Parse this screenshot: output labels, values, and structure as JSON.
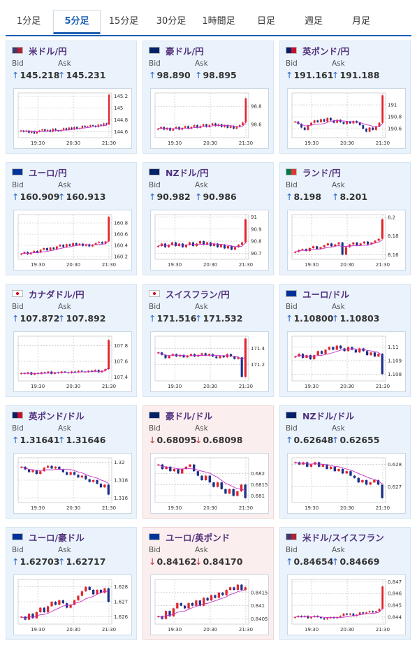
{
  "tabs": [
    {
      "label": "1分足"
    },
    {
      "label": "5分足",
      "active": true
    },
    {
      "label": "15分足"
    },
    {
      "label": "30分足"
    },
    {
      "label": "1時間足"
    },
    {
      "label": "日足"
    },
    {
      "label": "週足"
    },
    {
      "label": "月足"
    }
  ],
  "labels": {
    "bid": "Bid",
    "ask": "Ask"
  },
  "colors": {
    "up": "#2a64c8",
    "down": "#c0303a",
    "candle_up": "#e0262c",
    "candle_down": "#1b2f8a",
    "ma": "#c42fc4"
  },
  "cards": [
    {
      "pair": "米ドル/円",
      "flag": "US",
      "dir": "up",
      "bid": "145.218",
      "ask": "145.231"
    },
    {
      "pair": "豪ドル/円",
      "flag": "AU",
      "dir": "up",
      "bid": "98.890",
      "ask": "98.895"
    },
    {
      "pair": "英ポンド/円",
      "flag": "GB",
      "dir": "up",
      "bid": "191.161",
      "ask": "191.188"
    },
    {
      "pair": "ユーロ/円",
      "flag": "EU",
      "dir": "up",
      "bid": "160.909",
      "ask": "160.913"
    },
    {
      "pair": "NZドル/円",
      "flag": "NZ",
      "dir": "up",
      "bid": "90.982",
      "ask": "90.986"
    },
    {
      "pair": "ランド/円",
      "flag": "ZA",
      "dir": "up",
      "bid": "8.198",
      "ask": "8.201"
    },
    {
      "pair": "カナダドル/円",
      "flag": "CA",
      "dir": "up",
      "bid": "107.872",
      "ask": "107.892"
    },
    {
      "pair": "スイスフラン/円",
      "flag": "CH",
      "dir": "up",
      "bid": "171.516",
      "ask": "171.532"
    },
    {
      "pair": "ユーロ/ドル",
      "flag": "EU",
      "dir": "up",
      "bid": "1.10800",
      "ask": "1.10803"
    },
    {
      "pair": "英ポンド/ドル",
      "flag": "GB",
      "dir": "up",
      "bid": "1.31641",
      "ask": "1.31646"
    },
    {
      "pair": "豪ドル/ドル",
      "flag": "AU",
      "dir": "down",
      "bid": "0.68095",
      "ask": "0.68098"
    },
    {
      "pair": "NZドル/ドル",
      "flag": "NZ",
      "dir": "up",
      "bid": "0.62648",
      "ask": "0.62655"
    },
    {
      "pair": "ユーロ/豪ドル",
      "flag": "EU",
      "dir": "up",
      "bid": "1.62703",
      "ask": "1.62717"
    },
    {
      "pair": "ユーロ/英ポンド",
      "flag": "EU",
      "dir": "down",
      "bid": "0.84162",
      "ask": "0.84170"
    },
    {
      "pair": "米ドル/スイスフラン",
      "flag": "US",
      "dir": "up",
      "bid": "0.84654",
      "ask": "0.84669"
    }
  ],
  "chart_data": [
    {
      "type": "candlestick",
      "x_ticks": [
        "19:30",
        "20:30",
        "21:30"
      ],
      "y_ticks": [
        "145.2",
        "145",
        "144.8",
        "144.6"
      ],
      "ylim": [
        144.5,
        145.25
      ],
      "close": [
        144.62,
        144.6,
        144.62,
        144.58,
        144.61,
        144.57,
        144.6,
        144.62,
        144.64,
        144.61,
        144.63,
        144.6,
        144.65,
        144.62,
        144.61,
        144.63,
        144.66,
        144.63,
        144.67,
        144.64,
        144.68,
        144.65,
        144.66,
        144.7,
        144.68,
        144.69,
        144.71,
        144.7,
        144.68,
        144.72,
        144.7,
        144.74,
        144.72,
        145.22
      ]
    },
    {
      "type": "candlestick",
      "x_ticks": [
        "19:30",
        "20:30",
        "21:30"
      ],
      "y_ticks": [
        "98.8",
        "98.6"
      ],
      "ylim": [
        98.45,
        98.95
      ],
      "close": [
        98.55,
        98.57,
        98.54,
        98.56,
        98.53,
        98.55,
        98.57,
        98.54,
        98.56,
        98.58,
        98.55,
        98.57,
        98.59,
        98.56,
        98.58,
        98.6,
        98.57,
        98.59,
        98.61,
        98.58,
        98.6,
        98.57,
        98.59,
        98.56,
        98.58,
        98.55,
        98.57,
        98.59,
        98.62,
        98.89
      ]
    },
    {
      "type": "candlestick",
      "x_ticks": [
        "19:30",
        "20:30",
        "21:30"
      ],
      "y_ticks": [
        "191",
        "190.8",
        "190.6"
      ],
      "ylim": [
        190.45,
        191.2
      ],
      "close": [
        190.72,
        190.68,
        190.62,
        190.58,
        190.66,
        190.7,
        190.74,
        190.71,
        190.76,
        190.72,
        190.78,
        190.74,
        190.7,
        190.75,
        190.71,
        190.68,
        190.72,
        190.69,
        190.73,
        190.7,
        190.66,
        190.6,
        190.55,
        190.62,
        190.58,
        190.64,
        190.7,
        191.16
      ]
    },
    {
      "type": "candlestick",
      "x_ticks": [
        "19:30",
        "20:30",
        "21:30"
      ],
      "y_ticks": [
        "160.8",
        "160.6",
        "160.4",
        "160.2"
      ],
      "ylim": [
        160.15,
        160.95
      ],
      "close": [
        160.25,
        160.28,
        160.24,
        160.27,
        160.3,
        160.27,
        160.32,
        160.35,
        160.31,
        160.36,
        160.33,
        160.38,
        160.41,
        160.37,
        160.42,
        160.39,
        160.44,
        160.4,
        160.43,
        160.39,
        160.42,
        160.38,
        160.41,
        160.44,
        160.46,
        160.43,
        160.47,
        160.91
      ]
    },
    {
      "type": "candlestick",
      "x_ticks": [
        "19:30",
        "20:30",
        "21:30"
      ],
      "y_ticks": [
        "91",
        "90.9",
        "90.8",
        "90.7"
      ],
      "ylim": [
        90.65,
        91.02
      ],
      "close": [
        90.76,
        90.78,
        90.75,
        90.77,
        90.79,
        90.76,
        90.78,
        90.75,
        90.77,
        90.79,
        90.76,
        90.78,
        90.8,
        90.77,
        90.79,
        90.76,
        90.78,
        90.75,
        90.77,
        90.74,
        90.76,
        90.73,
        90.75,
        90.77,
        90.79,
        90.98
      ]
    },
    {
      "type": "candlestick",
      "x_ticks": [
        "19:30",
        "20:30",
        "21:30"
      ],
      "y_ticks": [
        "8.2",
        "8.18",
        "8.16"
      ],
      "ylim": [
        8.155,
        8.203
      ],
      "close": [
        8.163,
        8.165,
        8.166,
        8.164,
        8.167,
        8.169,
        8.166,
        8.168,
        8.17,
        8.172,
        8.169,
        8.171,
        8.173,
        8.16,
        8.168,
        8.171,
        8.173,
        8.17,
        8.172,
        8.174,
        8.171,
        8.173,
        8.175,
        8.177,
        8.198
      ]
    },
    {
      "type": "candlestick",
      "x_ticks": [
        "19:30",
        "20:30",
        "21:30"
      ],
      "y_ticks": [
        "107.8",
        "107.6",
        "107.4"
      ],
      "ylim": [
        107.35,
        107.92
      ],
      "close": [
        107.45,
        107.44,
        107.46,
        107.43,
        107.45,
        107.44,
        107.46,
        107.45,
        107.47,
        107.44,
        107.46,
        107.45,
        107.47,
        107.46,
        107.45,
        107.47,
        107.46,
        107.48,
        107.47,
        107.46,
        107.48,
        107.47,
        107.49,
        107.46,
        107.48,
        107.5,
        107.87
      ]
    },
    {
      "type": "candlestick",
      "x_ticks": [
        "19:30",
        "20:30",
        "21:30"
      ],
      "y_ticks": [
        "171.4",
        "171.2"
      ],
      "ylim": [
        171.0,
        171.55
      ],
      "close": [
        171.35,
        171.32,
        171.28,
        171.31,
        171.33,
        171.3,
        171.32,
        171.29,
        171.31,
        171.33,
        171.3,
        171.32,
        171.34,
        171.31,
        171.33,
        171.3,
        171.28,
        171.31,
        171.29,
        171.33,
        171.3,
        171.27,
        171.29,
        171.05,
        171.52
      ]
    },
    {
      "type": "candlestick",
      "x_ticks": [
        "19:30",
        "20:30",
        "21:30"
      ],
      "y_ticks": [
        "1.11",
        "1.109",
        "1.108"
      ],
      "ylim": [
        1.1075,
        1.1108
      ],
      "close": [
        1.1093,
        1.1095,
        1.1092,
        1.1094,
        1.1091,
        1.1094,
        1.1097,
        1.1095,
        1.1098,
        1.11,
        1.1098,
        1.1101,
        1.1099,
        1.1097,
        1.11,
        1.1098,
        1.1096,
        1.1099,
        1.1097,
        1.1094,
        1.1096,
        1.1093,
        1.1095,
        1.108
      ]
    },
    {
      "type": "candlestick",
      "x_ticks": [
        "19:30",
        "20:30",
        "21:30"
      ],
      "y_ticks": [
        "1.32",
        "1.318",
        "1.316"
      ],
      "ylim": [
        1.3155,
        1.3205
      ],
      "close": [
        1.3195,
        1.3192,
        1.3189,
        1.3191,
        1.3187,
        1.319,
        1.3194,
        1.3196,
        1.3193,
        1.3195,
        1.3192,
        1.3189,
        1.3186,
        1.3189,
        1.3186,
        1.3183,
        1.3185,
        1.3181,
        1.3178,
        1.318,
        1.3176,
        1.3172,
        1.3175,
        1.3164
      ]
    },
    {
      "type": "candlestick",
      "x_ticks": [
        "19:30",
        "20:30",
        "21:30"
      ],
      "y_ticks": [
        "0.682",
        "0.6815",
        "0.681"
      ],
      "ylim": [
        0.6807,
        0.6827
      ],
      "close": [
        0.6824,
        0.6822,
        0.6823,
        0.6821,
        0.6822,
        0.682,
        0.6822,
        0.6823,
        0.6824,
        0.6821,
        0.6819,
        0.6817,
        0.6819,
        0.6816,
        0.6814,
        0.6816,
        0.6813,
        0.6811,
        0.6813,
        0.681,
        0.6812,
        0.6815,
        0.6809
      ]
    },
    {
      "type": "candlestick",
      "x_ticks": [
        "19:30",
        "20:30",
        "21:30"
      ],
      "y_ticks": [
        "0.628",
        "0.627"
      ],
      "ylim": [
        0.6263,
        0.6283
      ],
      "close": [
        0.6281,
        0.628,
        0.6281,
        0.6279,
        0.628,
        0.6281,
        0.6279,
        0.628,
        0.6278,
        0.6279,
        0.6277,
        0.6278,
        0.6276,
        0.6277,
        0.6275,
        0.6274,
        0.6272,
        0.6273,
        0.6271,
        0.6272,
        0.6273,
        0.6271,
        0.6265
      ]
    },
    {
      "type": "candlestick",
      "x_ticks": [
        "19:30",
        "20:30",
        "21:30"
      ],
      "y_ticks": [
        "1.628",
        "1.627",
        "1.626"
      ],
      "ylim": [
        1.6255,
        1.6285
      ],
      "close": [
        1.626,
        1.6258,
        1.6262,
        1.6259,
        1.6263,
        1.6266,
        1.6263,
        1.6267,
        1.627,
        1.6268,
        1.6271,
        1.6269,
        1.6266,
        1.6268,
        1.6271,
        1.6274,
        1.6277,
        1.628,
        1.6278,
        1.6275,
        1.6278,
        1.6276,
        1.6279,
        1.627
      ]
    },
    {
      "type": "candlestick",
      "x_ticks": [
        "19:30",
        "20:30",
        "21:30"
      ],
      "y_ticks": [
        "0.8415",
        "0.841",
        "0.8405"
      ],
      "ylim": [
        0.8403,
        0.842
      ],
      "close": [
        0.8406,
        0.8405,
        0.8408,
        0.8406,
        0.8409,
        0.8411,
        0.841,
        0.8409,
        0.8411,
        0.841,
        0.8412,
        0.841,
        0.8413,
        0.8412,
        0.8414,
        0.8413,
        0.8415,
        0.8414,
        0.8416,
        0.8417,
        0.8416,
        0.8418,
        0.8416,
        0.8417
      ]
    },
    {
      "type": "candlestick",
      "x_ticks": [
        "19:30",
        "20:30",
        "21:30"
      ],
      "y_ticks": [
        "0.847",
        "0.846",
        "0.845",
        "0.844"
      ],
      "ylim": [
        0.8434,
        0.8472
      ],
      "close": [
        0.844,
        0.8441,
        0.844,
        0.8441,
        0.8439,
        0.844,
        0.8441,
        0.844,
        0.8439,
        0.8438,
        0.8439,
        0.844,
        0.8439,
        0.844,
        0.8441,
        0.8443,
        0.8442,
        0.8443,
        0.8441,
        0.8442,
        0.8444,
        0.8443,
        0.8444,
        0.8445,
        0.8444,
        0.8445,
        0.8447,
        0.8466
      ]
    }
  ]
}
